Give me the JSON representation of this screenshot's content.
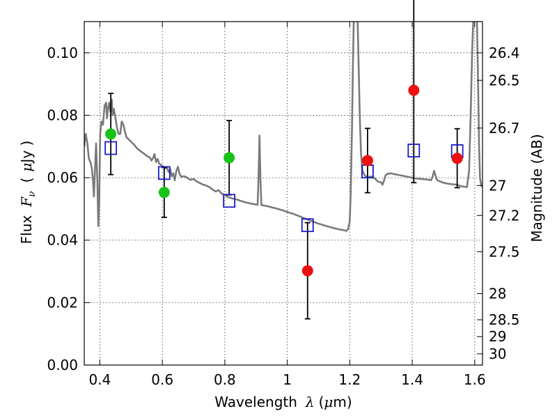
{
  "chart_data": {
    "type": "scatter",
    "xlabel": {
      "text": "Wavelength",
      "symbol": "λ",
      "unit_open": "(",
      "unit_mu": "μ",
      "unit_rest": "m)"
    },
    "ylabel": {
      "text": "Flux",
      "symbol": "F",
      "sub": "ν",
      "unit_open": "(",
      "unit_mu": "μ",
      "unit_rest": "Jy )"
    },
    "y2label": "Magnitude (AB)",
    "xlim": [
      0.35,
      1.625
    ],
    "ylim": [
      0.0,
      0.11
    ],
    "grid": true,
    "x_ticks": [
      0.4,
      0.6,
      0.8,
      1.0,
      1.2,
      1.4,
      1.6
    ],
    "x_tick_labels": [
      "0.4",
      "0.6",
      "0.8",
      "1",
      "1.2",
      "1.4",
      "1.6"
    ],
    "y_ticks": [
      0.0,
      0.02,
      0.04,
      0.06,
      0.08,
      0.1
    ],
    "y_tick_labels": [
      "0.00",
      "0.02",
      "0.04",
      "0.06",
      "0.08",
      "0.10"
    ],
    "y2_ticks": [
      {
        "label": "26.4",
        "flux": 0.1
      },
      {
        "label": "26.5",
        "flux": 0.0912
      },
      {
        "label": "26.7",
        "flux": 0.0759
      },
      {
        "label": "27",
        "flux": 0.0575
      },
      {
        "label": "27.2",
        "flux": 0.0479
      },
      {
        "label": "27.5",
        "flux": 0.0363
      },
      {
        "label": "28",
        "flux": 0.0229
      },
      {
        "label": "28.5",
        "flux": 0.0145
      },
      {
        "label": "29",
        "flux": 0.0091
      },
      {
        "label": "30",
        "flux": 0.0036
      }
    ],
    "colors": {
      "green": "#16c316",
      "red": "#ec1010",
      "model_box": "#1a1acc",
      "template": "#7a7a7a",
      "errorbar": "#000000"
    },
    "series": [
      {
        "group": "green",
        "points": [
          {
            "x": 0.435,
            "y": 0.074,
            "err_low": 0.061,
            "err_high": 0.087
          },
          {
            "x": 0.606,
            "y": 0.0553,
            "err_low": 0.0473,
            "err_high": 0.0633
          },
          {
            "x": 0.814,
            "y": 0.0664,
            "err_low": 0.0545,
            "err_high": 0.0783
          }
        ]
      },
      {
        "group": "red",
        "points": [
          {
            "x": 1.065,
            "y": 0.0302,
            "err_low": 0.0148,
            "err_high": 0.0456
          },
          {
            "x": 1.257,
            "y": 0.0655,
            "err_low": 0.0552,
            "err_high": 0.0758
          },
          {
            "x": 1.405,
            "y": 0.088,
            "err_low": 0.0584,
            "err_high": 0.1176
          },
          {
            "x": 1.544,
            "y": 0.0662,
            "err_low": 0.0568,
            "err_high": 0.0757
          }
        ]
      },
      {
        "group": "model_box",
        "points": [
          {
            "x": 0.435,
            "y": 0.0695
          },
          {
            "x": 0.606,
            "y": 0.0615
          },
          {
            "x": 0.814,
            "y": 0.0526
          },
          {
            "x": 1.065,
            "y": 0.0448
          },
          {
            "x": 1.257,
            "y": 0.062
          },
          {
            "x": 1.405,
            "y": 0.0687
          },
          {
            "x": 1.544,
            "y": 0.0685
          }
        ]
      }
    ],
    "template_spectrum": [
      [
        0.35,
        0.07
      ],
      [
        0.355,
        0.074
      ],
      [
        0.36,
        0.071
      ],
      [
        0.365,
        0.066
      ],
      [
        0.37,
        0.065
      ],
      [
        0.375,
        0.0625
      ],
      [
        0.378,
        0.059
      ],
      [
        0.381,
        0.054
      ],
      [
        0.384,
        0.062
      ],
      [
        0.388,
        0.071
      ],
      [
        0.392,
        0.0595
      ],
      [
        0.395,
        0.0445
      ],
      [
        0.398,
        0.052
      ],
      [
        0.401,
        0.074
      ],
      [
        0.405,
        0.078
      ],
      [
        0.41,
        0.077
      ],
      [
        0.415,
        0.083
      ],
      [
        0.42,
        0.084
      ],
      [
        0.423,
        0.079
      ],
      [
        0.426,
        0.082
      ],
      [
        0.43,
        0.084
      ],
      [
        0.434,
        0.081
      ],
      [
        0.438,
        0.085
      ],
      [
        0.441,
        0.08
      ],
      [
        0.445,
        0.082
      ],
      [
        0.45,
        0.079
      ],
      [
        0.455,
        0.076
      ],
      [
        0.46,
        0.074
      ],
      [
        0.465,
        0.074
      ],
      [
        0.47,
        0.078
      ],
      [
        0.475,
        0.077
      ],
      [
        0.48,
        0.075
      ],
      [
        0.485,
        0.073
      ],
      [
        0.49,
        0.0725
      ],
      [
        0.5,
        0.0715
      ],
      [
        0.51,
        0.0705
      ],
      [
        0.52,
        0.0693
      ],
      [
        0.53,
        0.0685
      ],
      [
        0.54,
        0.0678
      ],
      [
        0.55,
        0.067
      ],
      [
        0.56,
        0.0665
      ],
      [
        0.565,
        0.0655
      ],
      [
        0.57,
        0.0662
      ],
      [
        0.575,
        0.0676
      ],
      [
        0.58,
        0.065
      ],
      [
        0.585,
        0.066
      ],
      [
        0.59,
        0.0645
      ],
      [
        0.6,
        0.0638
      ],
      [
        0.61,
        0.063
      ],
      [
        0.615,
        0.0632
      ],
      [
        0.62,
        0.0618
      ],
      [
        0.625,
        0.0628
      ],
      [
        0.63,
        0.0605
      ],
      [
        0.635,
        0.0614
      ],
      [
        0.64,
        0.0592
      ],
      [
        0.645,
        0.0622
      ],
      [
        0.65,
        0.0635
      ],
      [
        0.655,
        0.0613
      ],
      [
        0.66,
        0.0603
      ],
      [
        0.67,
        0.0605
      ],
      [
        0.68,
        0.06
      ],
      [
        0.69,
        0.0593
      ],
      [
        0.7,
        0.0596
      ],
      [
        0.71,
        0.0588
      ],
      [
        0.72,
        0.0583
      ],
      [
        0.73,
        0.0578
      ],
      [
        0.74,
        0.0575
      ],
      [
        0.75,
        0.057
      ],
      [
        0.76,
        0.0563
      ],
      [
        0.77,
        0.0556
      ],
      [
        0.78,
        0.056
      ],
      [
        0.79,
        0.0549
      ],
      [
        0.8,
        0.0545
      ],
      [
        0.81,
        0.0538
      ],
      [
        0.82,
        0.0535
      ],
      [
        0.83,
        0.0532
      ],
      [
        0.84,
        0.053
      ],
      [
        0.85,
        0.0526
      ],
      [
        0.86,
        0.0523
      ],
      [
        0.87,
        0.052
      ],
      [
        0.88,
        0.0518
      ],
      [
        0.89,
        0.0516
      ],
      [
        0.9,
        0.0514
      ],
      [
        0.905,
        0.0513
      ],
      [
        0.908,
        0.06
      ],
      [
        0.911,
        0.0735
      ],
      [
        0.914,
        0.06
      ],
      [
        0.917,
        0.0512
      ],
      [
        0.93,
        0.051
      ],
      [
        0.94,
        0.0508
      ],
      [
        0.95,
        0.0505
      ],
      [
        0.96,
        0.0503
      ],
      [
        0.97,
        0.05
      ],
      [
        0.98,
        0.0497
      ],
      [
        0.99,
        0.0494
      ],
      [
        1.0,
        0.049
      ],
      [
        1.02,
        0.0484
      ],
      [
        1.04,
        0.0476
      ],
      [
        1.06,
        0.0468
      ],
      [
        1.08,
        0.046
      ],
      [
        1.1,
        0.0453
      ],
      [
        1.12,
        0.0447
      ],
      [
        1.14,
        0.0441
      ],
      [
        1.16,
        0.0436
      ],
      [
        1.18,
        0.0432
      ],
      [
        1.19,
        0.043
      ],
      [
        1.195,
        0.0436
      ],
      [
        1.2,
        0.046
      ],
      [
        1.203,
        0.055
      ],
      [
        1.207,
        0.075
      ],
      [
        1.21,
        0.095
      ],
      [
        1.213,
        0.112
      ],
      [
        1.225,
        0.112
      ],
      [
        1.228,
        0.098
      ],
      [
        1.232,
        0.08
      ],
      [
        1.236,
        0.068
      ],
      [
        1.24,
        0.0625
      ],
      [
        1.245,
        0.0612
      ],
      [
        1.25,
        0.0605
      ],
      [
        1.26,
        0.0602
      ],
      [
        1.27,
        0.0604
      ],
      [
        1.28,
        0.0598
      ],
      [
        1.29,
        0.0588
      ],
      [
        1.3,
        0.0585
      ],
      [
        1.305,
        0.0578
      ],
      [
        1.31,
        0.0592
      ],
      [
        1.315,
        0.0608
      ],
      [
        1.32,
        0.0612
      ],
      [
        1.33,
        0.0614
      ],
      [
        1.34,
        0.0612
      ],
      [
        1.35,
        0.061
      ],
      [
        1.37,
        0.0606
      ],
      [
        1.39,
        0.0602
      ],
      [
        1.41,
        0.0598
      ],
      [
        1.43,
        0.0596
      ],
      [
        1.45,
        0.0594
      ],
      [
        1.46,
        0.0592
      ],
      [
        1.465,
        0.0602
      ],
      [
        1.47,
        0.0622
      ],
      [
        1.475,
        0.0605
      ],
      [
        1.48,
        0.0592
      ],
      [
        1.5,
        0.0584
      ],
      [
        1.52,
        0.058
      ],
      [
        1.54,
        0.0578
      ],
      [
        1.56,
        0.0572
      ],
      [
        1.575,
        0.057
      ],
      [
        1.582,
        0.062
      ],
      [
        1.587,
        0.08
      ],
      [
        1.592,
        0.101
      ],
      [
        1.596,
        0.112
      ],
      [
        1.607,
        0.112
      ],
      [
        1.611,
        0.09
      ],
      [
        1.614,
        0.07
      ],
      [
        1.617,
        0.06
      ],
      [
        1.621,
        0.0575
      ],
      [
        1.625,
        0.057
      ]
    ]
  }
}
